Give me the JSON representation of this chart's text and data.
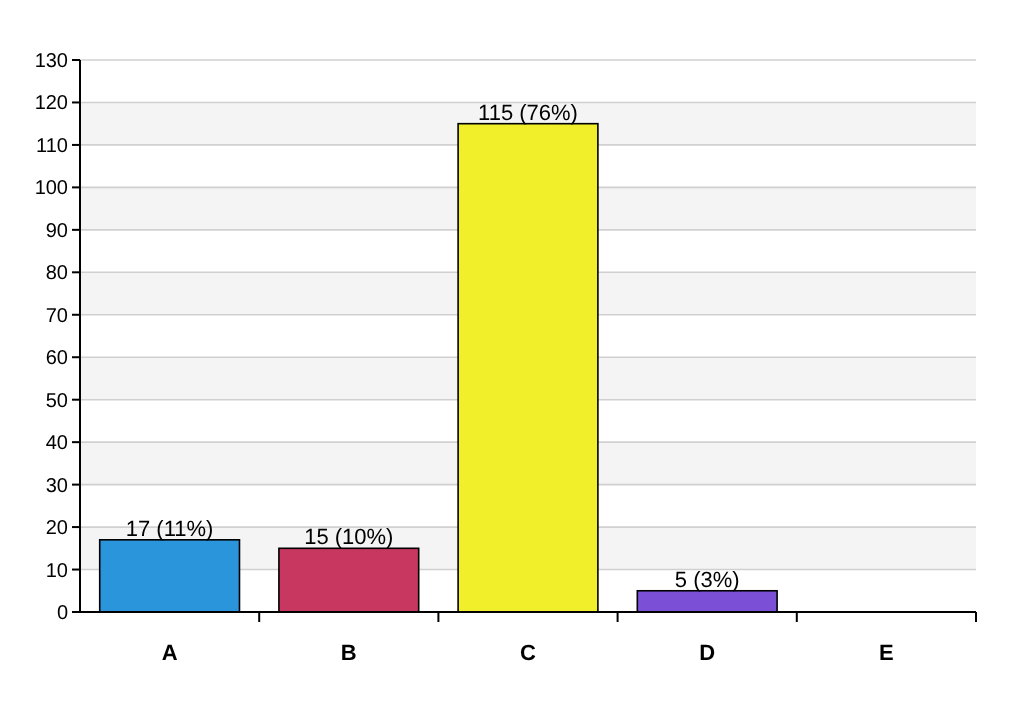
{
  "chart_data": {
    "type": "bar",
    "categories": [
      "A",
      "B",
      "C",
      "D",
      "E"
    ],
    "values": [
      17,
      15,
      115,
      5,
      0
    ],
    "colors": [
      "#2b95dc",
      "#c8375f",
      "#f0ef2a",
      "#7b4fd6",
      "#e8a33a"
    ],
    "value_labels": [
      "17 (11%)",
      "15 (10%)",
      "115 (76%)",
      "5 (3%)",
      null
    ],
    "ylim": [
      0,
      130
    ],
    "yticks": [
      0,
      10,
      20,
      30,
      40,
      50,
      60,
      70,
      80,
      90,
      100,
      110,
      120,
      130
    ],
    "grid": "y"
  }
}
